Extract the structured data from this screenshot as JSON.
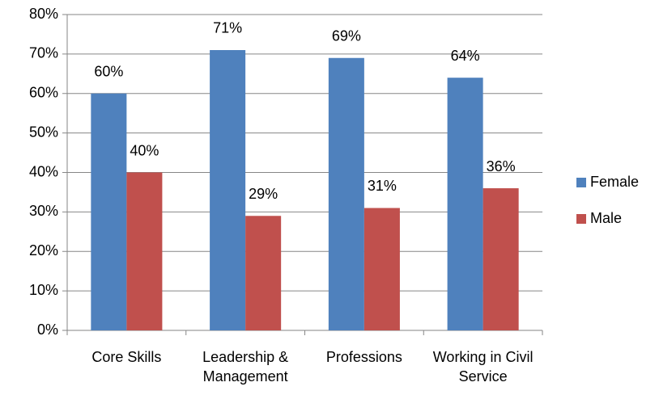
{
  "chart_data": {
    "type": "bar",
    "categories": [
      "Core Skills",
      "Leadership & Management",
      "Professions",
      "Working in Civil Service"
    ],
    "series": [
      {
        "name": "Female",
        "color": "#4f81bd",
        "values": [
          60,
          71,
          69,
          64
        ],
        "value_labels": [
          "60%",
          "71%",
          "69%",
          "64%"
        ]
      },
      {
        "name": "Male",
        "color": "#c0504d",
        "values": [
          40,
          29,
          31,
          36
        ],
        "value_labels": [
          "40%",
          "29%",
          "31%",
          "36%"
        ]
      }
    ],
    "ylim": [
      0,
      80
    ],
    "yticks": [
      {
        "value": 0,
        "label": "0%"
      },
      {
        "value": 10,
        "label": "10%"
      },
      {
        "value": 20,
        "label": "20%"
      },
      {
        "value": 30,
        "label": "30%"
      },
      {
        "value": 40,
        "label": "40%"
      },
      {
        "value": 50,
        "label": "50%"
      },
      {
        "value": 60,
        "label": "60%"
      },
      {
        "value": 70,
        "label": "70%"
      },
      {
        "value": 80,
        "label": "80%"
      }
    ],
    "grid": true,
    "legend": "right"
  }
}
